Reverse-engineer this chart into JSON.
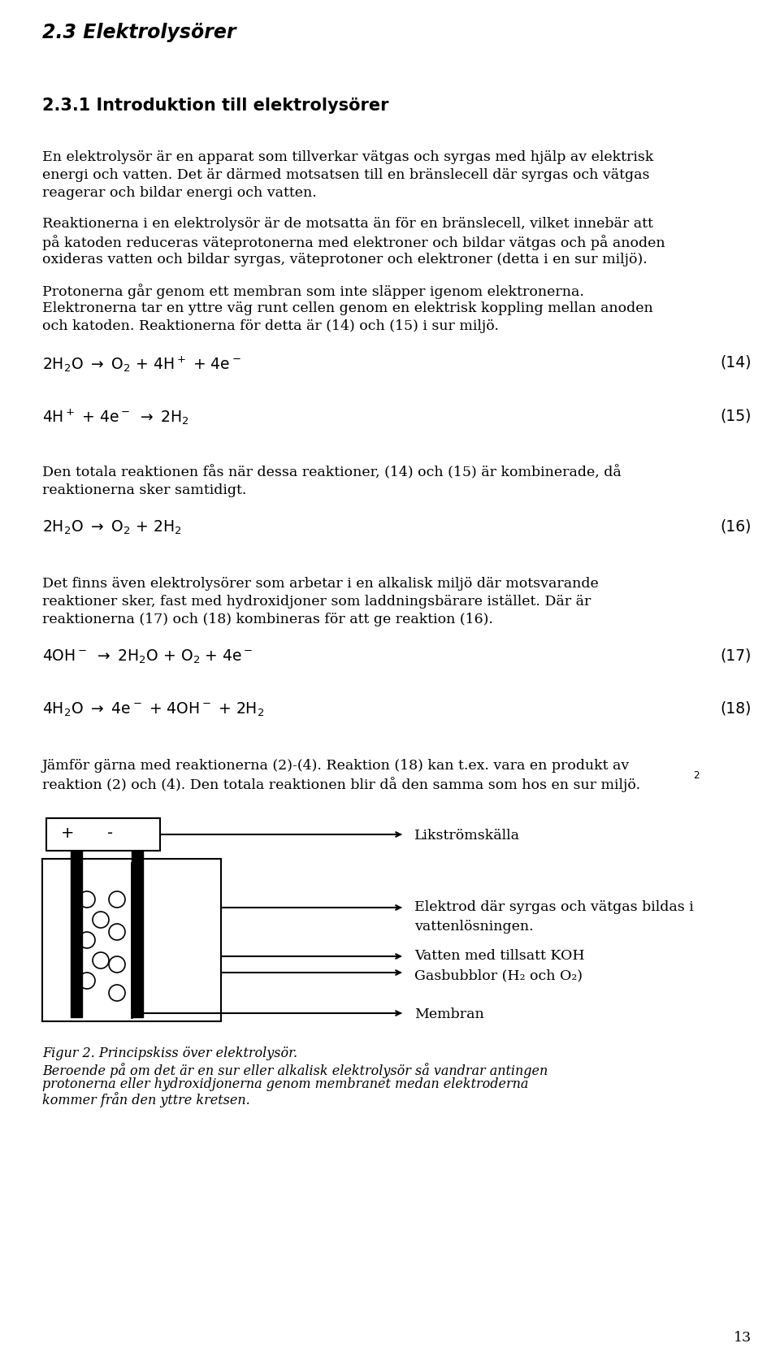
{
  "bg_color": "#ffffff",
  "text_color": "#000000",
  "heading1": "2.3 Elektrolysörer",
  "heading2": "2.3.1 Introduktion till elektrolysörer",
  "para1_lines": [
    "En elektrolysör är en apparat som tillverkar vätgas och syrgas med hjälp av elektrisk",
    "energi och vatten. Det är därmed motsatsen till en bränslecell där syrgas och vätgas",
    "reagerar och bildar energi och vatten."
  ],
  "para2_lines": [
    "Reaktionerna i en elektrolysör är de motsatta än för en bränslecell, vilket innebär att",
    "på katoden reduceras väteprotonerna med elektroner och bildar vätgas och på anoden",
    "oxideras vatten och bildar syrgas, väteprotoner och elektroner (detta i en sur miljö)."
  ],
  "para3_lines": [
    "Protonerna går genom ett membran som inte släpper igenom elektronerna.",
    "Elektronerna tar en yttre väg runt cellen genom en elektrisk koppling mellan anoden",
    "och katoden. Reaktionerna för detta är (14) och (15) i sur miljö."
  ],
  "eq14_num": "(14)",
  "eq15_num": "(15)",
  "para4_lines": [
    "Den totala reaktionen fås när dessa reaktioner, (14) och (15) är kombinerade, då",
    "reaktionerna sker samtidigt."
  ],
  "eq16_num": "(16)",
  "para5_lines": [
    "Det finns även elektrolysörer som arbetar i en alkalisk miljö där motsvarande",
    "reaktioner sker, fast med hydroxidjoner som laddningsbärare istället. Där är",
    "reaktionerna (17) och (18) kombineras för att ge reaktion (16)."
  ],
  "eq17_num": "(17)",
  "eq18_num": "(18)",
  "para6_lines": [
    "Jämför gärna med reaktionerna (2)-(4). Reaktion (18) kan t.ex. vara en produkt av",
    "reaktion (2) och (4). Den totala reaktionen blir då den samma som hos en sur miljö."
  ],
  "superscript2": "2",
  "fig_cap1": "Figur 2. Principskiss över elektrolysör.",
  "fig_cap2_lines": [
    "Beroende på om det är en sur eller alkalisk elektrolysör så vandrar antingen",
    "protonerna eller hydroxidjonerna genom membranet medan elektroderna",
    "kommer från den yttre kretsen."
  ],
  "page_num": "13",
  "diag_plus": "+",
  "diag_minus": "-",
  "diag_likstrom": "Likströmskälla",
  "diag_elektrod1": "Elektrod där syrgas och vätgas bildas i",
  "diag_elektrod2": "vattenlösningen.",
  "diag_vatten": "Vatten med tillsatt KOH",
  "diag_gasbubblor": "Gasbubblor (H₂ och O₂)",
  "diag_membran": "Membran"
}
